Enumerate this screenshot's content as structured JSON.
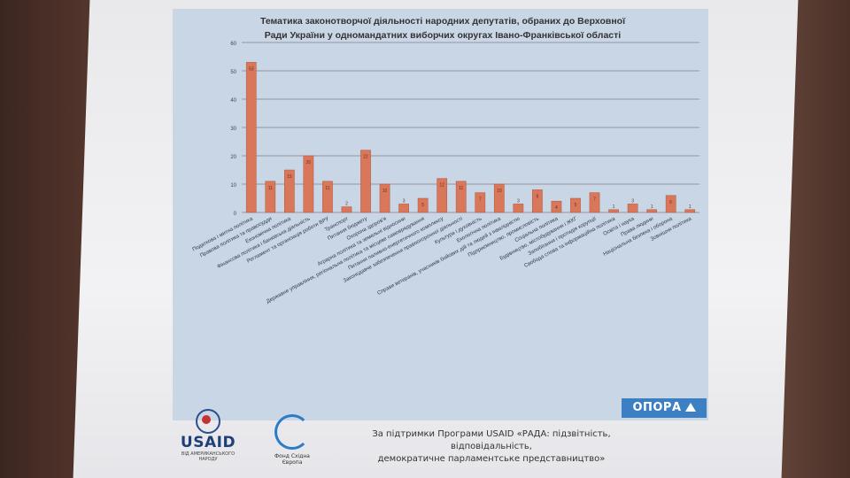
{
  "chart_data": {
    "type": "bar",
    "title": "Тематика законотворчої діяльності народних депутатів, обраних до Верховної Ради України у одномандатних виборчих округах Івано-Франківської області",
    "title_lines": [
      "Тематика законотворчої діяльності народних депутатів, обраних до Верховної",
      "Ради України у одномандатних виборчих округах Івано-Франківської області"
    ],
    "ylim": [
      0,
      60
    ],
    "yticks": [
      0,
      10,
      20,
      30,
      40,
      50,
      60
    ],
    "grid": true,
    "bar_color": "#d9775a",
    "categories": [
      "Податкова і митна політика",
      "Правова політика та правосуддя",
      "Економічна політика",
      "Фінансова політика і банківська діяльність",
      "Регламент та організація роботи ВРУ",
      "Транспорт",
      "Питання бюджету",
      "Охорона здоров'я",
      "Аграрна політика та земельні відносини",
      "Державне управління, регіональна політика та місцеве самоврядування",
      "Питання паливно-енергетичного комплексу",
      "Законодавче забезпечення правоохоронної діяльності",
      "Культура і духовність",
      "Екологічна політика",
      "Справи ветеранів, учасників бойових дій та людей з інвалідністю",
      "Підприємництво, промисловість",
      "Соціальна політика",
      "Будівництво, містобудування і ЖКГ",
      "Запобігання і протидія корупції",
      "Свобода слова та інформаційна політика",
      "Освіта і наука",
      "Права людини",
      "Національна безпека і оборона",
      "Зовнішня політика"
    ],
    "values": [
      53,
      11,
      15,
      20,
      11,
      2,
      22,
      10,
      3,
      5,
      12,
      11,
      7,
      10,
      3,
      8,
      4,
      5,
      7,
      1,
      3,
      1,
      6,
      1
    ]
  },
  "branding": {
    "opora": "ОПОРА",
    "usaid": "USAID",
    "usaid_tagline": "ВІД АМЕРИКАНСЬКОГО НАРОДУ",
    "fse": "Фонд Східна Європа"
  },
  "footer": {
    "line1": "За підтримки Програми USAID «РАДА: підзвітність, відповідальність,",
    "line2": "демократичне парламентське представництво»"
  }
}
